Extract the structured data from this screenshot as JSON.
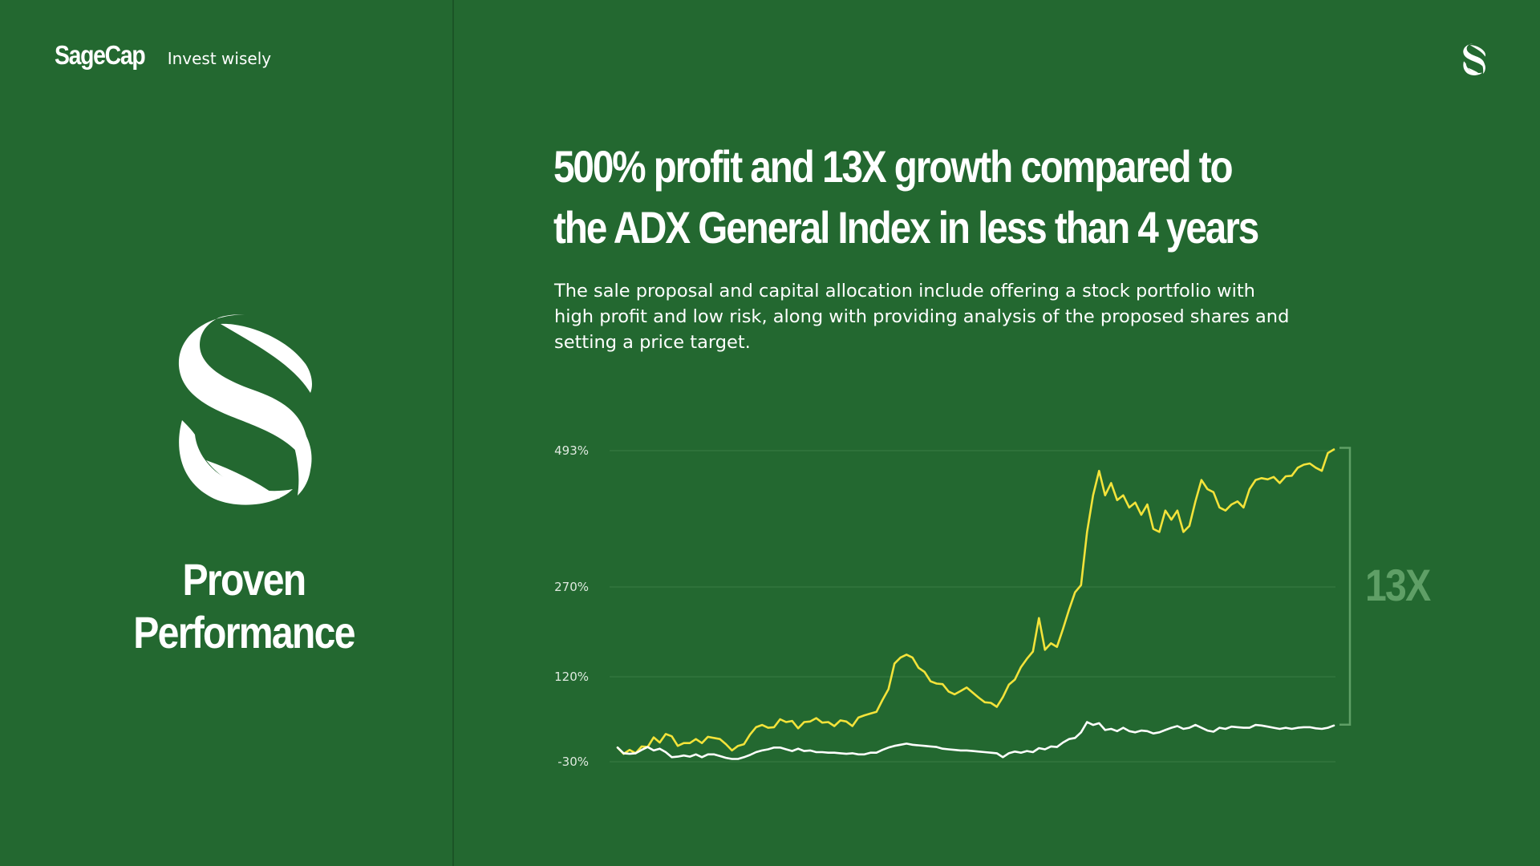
{
  "brand": {
    "name": "SageCap",
    "tagline": "Invest wisely"
  },
  "panel": {
    "title_line1": "Proven",
    "title_line2": "Performance"
  },
  "headline": {
    "line1": "500% profit and 13X growth compared to",
    "line2": "the ADX General Index in less than 4 years"
  },
  "description": "The sale proposal and capital allocation include offering a stock portfolio with high profit and low risk, along with providing analysis of the proposed shares and setting a price target.",
  "colors": {
    "background": "#236830",
    "portfolio_line": "#f3e33a",
    "index_line": "#ffffff",
    "bracket": "#5f9f66",
    "gridline": "#3a7d45"
  },
  "icons": {
    "brand_mark": "sagecap-s-leaf-icon"
  },
  "chart_data": {
    "type": "line",
    "title": "",
    "xlabel": "",
    "ylabel": "",
    "y_ticks": [
      "493%",
      "270%",
      "120%",
      "-30%"
    ],
    "y_tick_values": [
      493,
      270,
      120,
      -30
    ],
    "ylim": [
      -30,
      493
    ],
    "x": [
      0,
      1,
      2,
      3,
      4,
      5,
      6,
      7,
      8,
      9,
      10,
      11,
      12,
      13,
      14,
      15,
      16,
      17,
      18,
      19,
      20,
      21,
      22,
      23,
      24,
      25,
      26,
      27,
      28,
      29,
      30,
      31,
      32,
      33,
      34,
      35,
      36,
      37,
      38,
      39,
      40,
      41,
      42,
      43,
      44,
      45,
      46,
      47,
      48,
      49,
      50,
      51,
      52,
      53,
      54,
      55,
      56,
      57,
      58,
      59,
      60,
      61,
      62,
      63,
      64,
      65,
      66,
      67,
      68,
      69,
      70,
      71,
      72,
      73,
      74,
      75,
      76,
      77,
      78,
      79,
      80,
      81,
      82,
      83,
      84,
      85,
      86,
      87,
      88,
      89,
      90,
      91,
      92,
      93,
      94,
      95,
      96,
      97,
      98,
      99,
      100,
      101,
      102,
      103,
      104,
      105,
      106,
      107,
      108,
      109,
      110,
      111,
      112,
      113,
      114,
      115,
      116,
      117,
      118,
      119
    ],
    "grid": true,
    "series": [
      {
        "values": [
          -5,
          -16,
          -9,
          -15,
          -3,
          -4,
          13,
          4,
          19,
          15,
          -2,
          3,
          3,
          10,
          3,
          14,
          12,
          10,
          1,
          -10,
          -2,
          1,
          18,
          31,
          35,
          30,
          31,
          45,
          40,
          42,
          29,
          40,
          41,
          47,
          39,
          40,
          33,
          43,
          41,
          33,
          48,
          52,
          55,
          58,
          79,
          98,
          142,
          152,
          157,
          152,
          135,
          128,
          112,
          108,
          107,
          94,
          89,
          95,
          101,
          92,
          83,
          75,
          74,
          67,
          84,
          106,
          115,
          136,
          150,
          162,
          218,
          165,
          176,
          170,
          200,
          232,
          261,
          273,
          360,
          420,
          460,
          420,
          440,
          412,
          420,
          400,
          408,
          388,
          405,
          365,
          360,
          395,
          380,
          395,
          360,
          370,
          410,
          445,
          430,
          425,
          400,
          395,
          405,
          410,
          400,
          430,
          445,
          448,
          446,
          450,
          440,
          451,
          452,
          465,
          470,
          472,
          465,
          460,
          489,
          495
        ],
        "color": "#f3e33a"
      },
      {
        "values": [
          -5,
          -15,
          -16,
          -15,
          -9,
          -4,
          -10,
          -7,
          -13,
          -22,
          -21,
          -19,
          -21,
          -17,
          -22,
          -17,
          -17,
          -20,
          -23,
          -25,
          -25,
          -22,
          -18,
          -13,
          -10,
          -8,
          -5,
          -5,
          -8,
          -11,
          -7,
          -11,
          -10,
          -13,
          -13,
          -14,
          -14,
          -15,
          -16,
          -15,
          -17,
          -17,
          -14,
          -14,
          -9,
          -5,
          -2,
          0,
          2,
          0,
          -1,
          -2,
          -3,
          -4,
          -7,
          -8,
          -9,
          -10,
          -10,
          -11,
          -12,
          -13,
          -14,
          -15,
          -22,
          -15,
          -12,
          -14,
          -11,
          -13,
          -6,
          -8,
          -3,
          -4,
          4,
          10,
          12,
          22,
          40,
          35,
          38,
          26,
          28,
          24,
          30,
          24,
          22,
          25,
          24,
          20,
          22,
          26,
          30,
          33,
          28,
          30,
          35,
          30,
          25,
          23,
          30,
          28,
          32,
          31,
          30,
          30,
          35,
          34,
          32,
          30,
          28,
          30,
          28,
          30,
          31,
          31,
          29,
          28,
          30,
          34
        ],
        "color": "#ffffff"
      }
    ],
    "annotation": "13X"
  }
}
